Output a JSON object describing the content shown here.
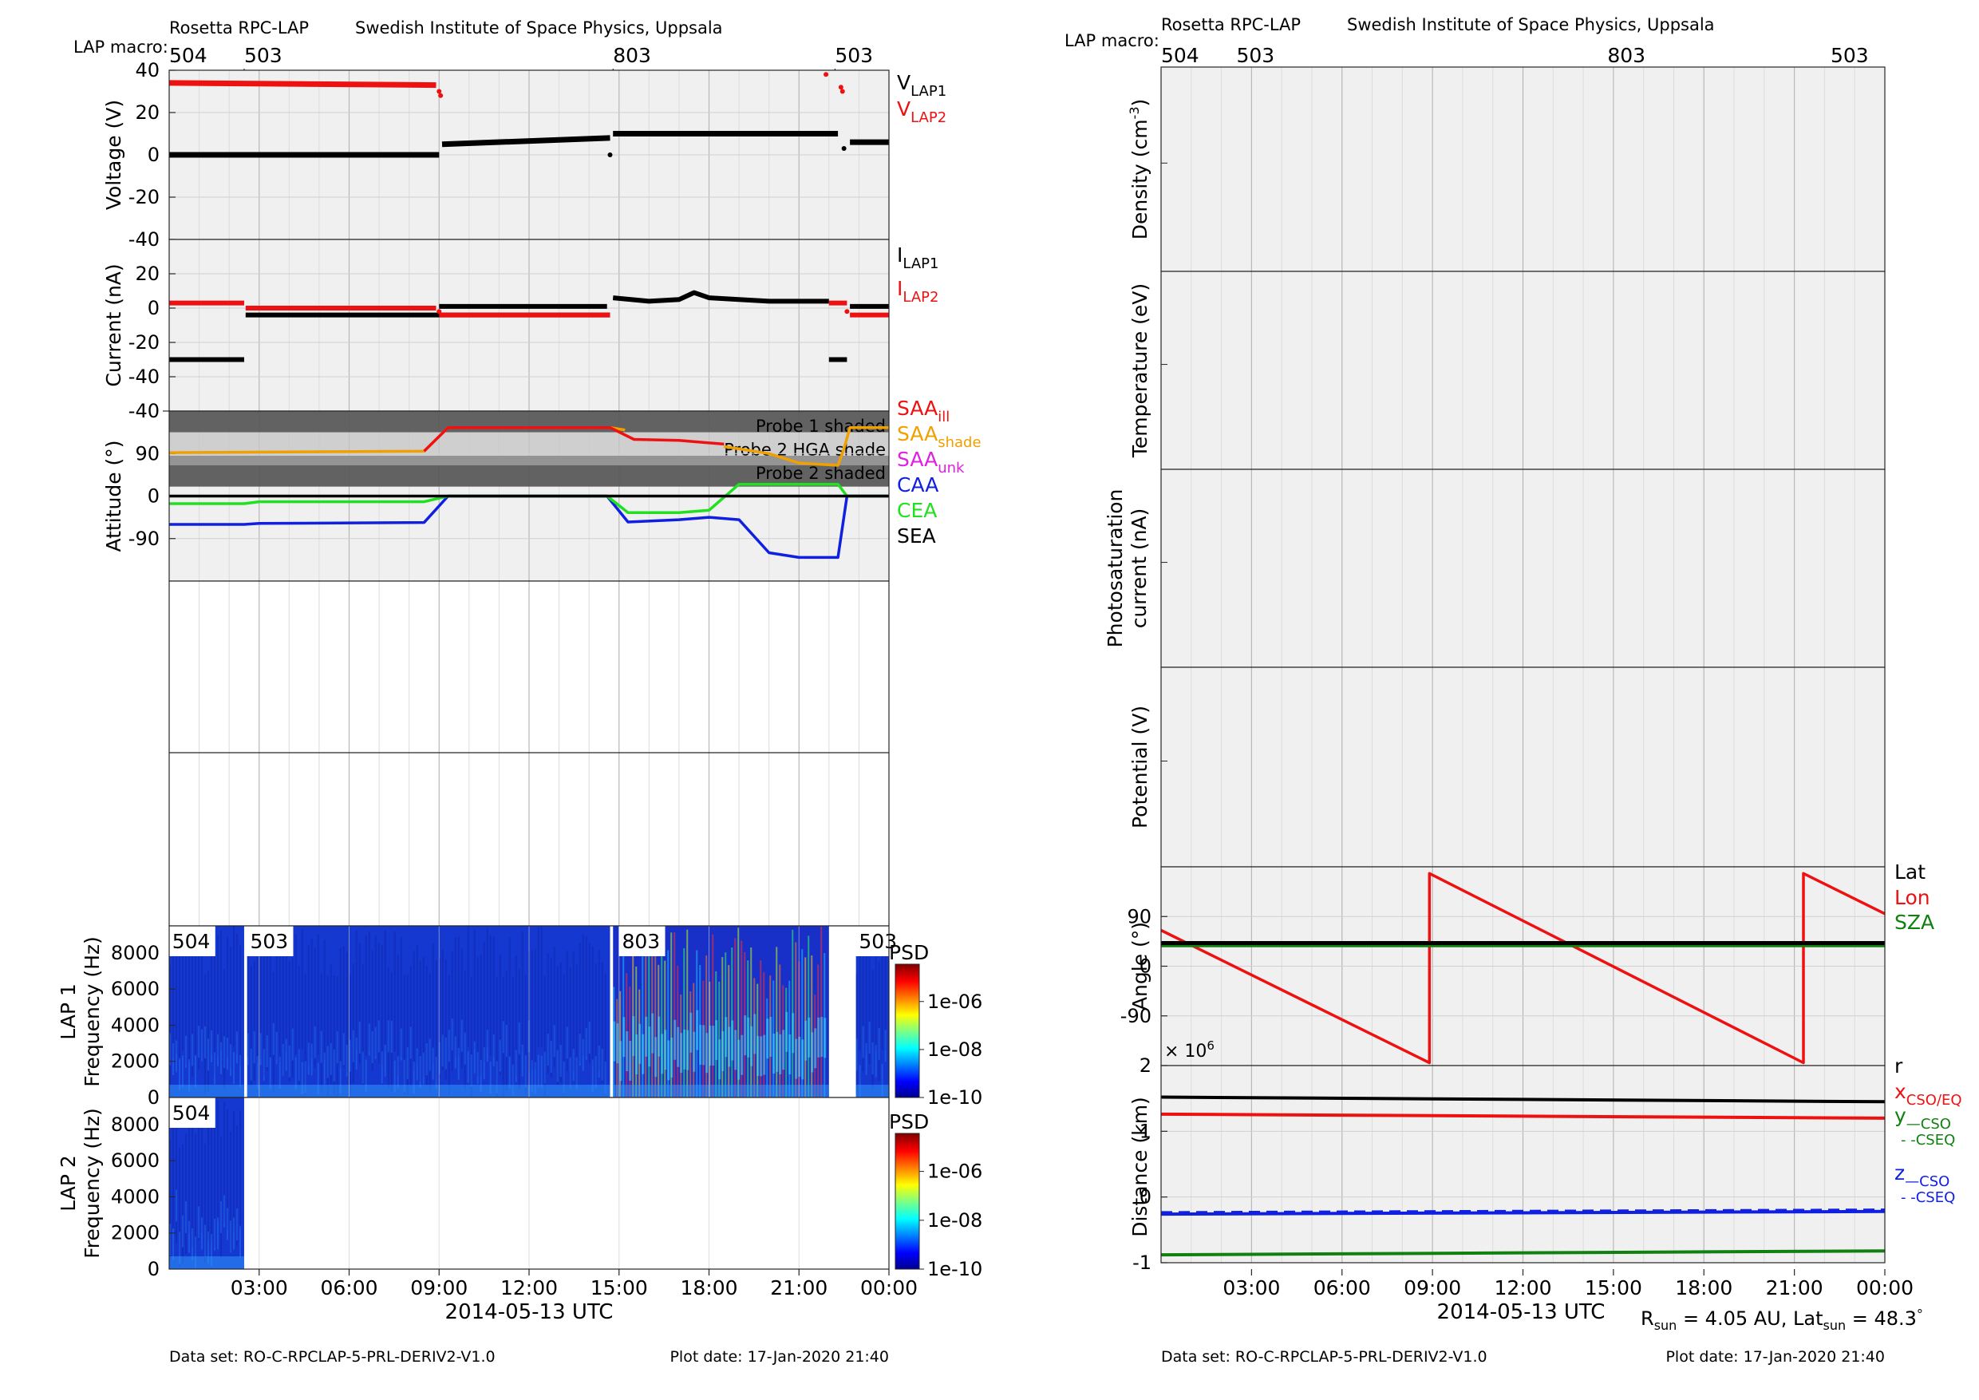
{
  "colors": {
    "panel_bg": "#f0f0f0",
    "grid": "#c8c8c8",
    "axis": "#262626",
    "black": "#000000",
    "red": "#ee1111",
    "orange": "#f0a000",
    "magenta": "#e020e0",
    "blue": "#1020e0",
    "green": "#20e020",
    "dark_green": "#108010",
    "shade_dark": "#5a5a5a",
    "shade_mid": "#9a9a9a",
    "shade_light": "#c4c4c4"
  },
  "left": {
    "header": {
      "instrument": "Rosetta RPC-LAP",
      "institute": "Swedish Institute of Space Physics, Uppsala",
      "macro_label": "LAP macro:",
      "macros": [
        {
          "label": "504",
          "t": 0.0
        },
        {
          "label": "503",
          "t": 2.5
        },
        {
          "label": "803",
          "t": 14.8
        },
        {
          "label": "503",
          "t": 22.2
        }
      ]
    },
    "x_ticks": [
      "03:00",
      "06:00",
      "09:00",
      "12:00",
      "15:00",
      "18:00",
      "21:00",
      "00:00"
    ],
    "x_label": "2014-05-13 UTC",
    "footer_dataset": "Data set: RO-C-RPCLAP-5-PRL-DERIV2-V1.0",
    "footer_plotdate": "Plot date: 17-Jan-2020 21:40"
  },
  "right": {
    "header": {
      "instrument": "Rosetta RPC-LAP",
      "institute": "Swedish Institute of Space Physics, Uppsala",
      "macro_label": "LAP macro:",
      "macros": [
        {
          "label": "504",
          "t": 0.0
        },
        {
          "label": "503",
          "t": 2.5
        },
        {
          "label": "803",
          "t": 14.8
        },
        {
          "label": "503",
          "t": 22.2
        }
      ]
    },
    "x_ticks": [
      "03:00",
      "06:00",
      "09:00",
      "12:00",
      "15:00",
      "18:00",
      "21:00",
      "00:00"
    ],
    "x_label": "2014-05-13 UTC",
    "sun_info": {
      "r_sun_label": "R",
      "r_sun_sub": "sun",
      "r_sun_value": " = 4.05 AU, Lat",
      "lat_sub": "sun",
      "lat_value": " = 48.3",
      "deg": "°"
    },
    "footer_dataset": "Data set: RO-C-RPCLAP-5-PRL-DERIV2-V1.0",
    "footer_plotdate": "Plot date: 17-Jan-2020 21:40"
  },
  "chart_data": [
    {
      "type": "scatter",
      "panel": "voltage",
      "ylabel": "Voltage (V)",
      "ylim": [
        -40,
        40
      ],
      "yticks": [
        "40",
        "20",
        "0",
        "-20",
        "-40"
      ],
      "xlim_hours": [
        0,
        24
      ],
      "legend": [
        {
          "name": "V",
          "sub": "LAP1",
          "color": "black"
        },
        {
          "name": "V",
          "sub": "LAP2",
          "color": "red"
        }
      ],
      "series": [
        {
          "name": "VLAP1",
          "color": "black",
          "segments": [
            [
              [
                0,
                0
              ],
              [
                9.0,
                0
              ]
            ],
            [
              [
                9.1,
                5
              ],
              [
                14.7,
                8
              ]
            ],
            [
              [
                14.8,
                10
              ],
              [
                22.3,
                10
              ]
            ],
            [
              [
                22.7,
                6
              ],
              [
                24,
                6
              ]
            ]
          ],
          "points": [
            [
              14.7,
              0
            ],
            [
              22.5,
              3
            ]
          ]
        },
        {
          "name": "VLAP2",
          "color": "red",
          "segments": [
            [
              [
                0,
                34
              ],
              [
                8.9,
                33
              ]
            ]
          ],
          "points": [
            [
              9.0,
              30
            ],
            [
              9.05,
              28
            ],
            [
              21.9,
              38
            ],
            [
              22.4,
              32
            ],
            [
              22.45,
              30
            ]
          ]
        }
      ]
    },
    {
      "type": "scatter",
      "panel": "current",
      "ylabel": "Current (nA)",
      "ylim": [
        -40,
        40
      ],
      "yticks": [
        "20",
        "0",
        "-20",
        "-40"
      ],
      "xlim_hours": [
        0,
        24
      ],
      "legend": [
        {
          "name": "I",
          "sub": "LAP1",
          "color": "black"
        },
        {
          "name": "I",
          "sub": "LAP2",
          "color": "red"
        }
      ],
      "series": [
        {
          "name": "ILAP1",
          "color": "black",
          "segments": [
            [
              [
                0,
                -30
              ],
              [
                2.5,
                -30
              ]
            ],
            [
              [
                2.55,
                -4
              ],
              [
                14.7,
                -4
              ]
            ],
            [
              [
                9.0,
                1
              ],
              [
                14.6,
                1
              ]
            ],
            [
              [
                14.8,
                6
              ],
              [
                16,
                4
              ],
              [
                17,
                5
              ],
              [
                17.5,
                9
              ],
              [
                18,
                6
              ],
              [
                19,
                5
              ],
              [
                20,
                4
              ],
              [
                22,
                4
              ]
            ],
            [
              [
                22.0,
                -30
              ],
              [
                22.6,
                -30
              ]
            ],
            [
              [
                22.7,
                1
              ],
              [
                24,
                1
              ]
            ]
          ],
          "points": []
        },
        {
          "name": "ILAP2",
          "color": "red",
          "segments": [
            [
              [
                0,
                3
              ],
              [
                2.5,
                3
              ]
            ],
            [
              [
                2.55,
                0
              ],
              [
                8.9,
                0
              ]
            ],
            [
              [
                9.0,
                -4
              ],
              [
                14.7,
                -4
              ]
            ],
            [
              [
                22.0,
                3
              ],
              [
                22.6,
                3
              ]
            ],
            [
              [
                22.7,
                -4
              ],
              [
                24,
                -4
              ]
            ]
          ],
          "points": [
            [
              9.0,
              -2
            ],
            [
              22.6,
              -2
            ]
          ]
        }
      ]
    },
    {
      "type": "line",
      "panel": "attitude",
      "ylabel": "Attitude (°)",
      "ylim": [
        -180,
        180
      ],
      "yticks": [
        "90",
        "0",
        "-90"
      ],
      "xlim_hours": [
        0,
        24
      ],
      "bands": [
        {
          "label": "Probe 1 shaded",
          "y0": 135,
          "y1": 180,
          "tone": "dark"
        },
        {
          "label": "Probe 2 HGA shade",
          "y0": 65,
          "y1": 135,
          "tone": "light"
        },
        {
          "label": "Probe 2 shaded",
          "y0": 20,
          "y1": 85,
          "tone": "dark"
        }
      ],
      "legend": [
        {
          "name": "SAA",
          "sub": "ill",
          "color": "red"
        },
        {
          "name": "SAA",
          "sub": "shade",
          "color": "orange"
        },
        {
          "name": "SAA",
          "sub": "unk",
          "color": "magenta"
        },
        {
          "name": "CAA",
          "sub": "",
          "color": "blue"
        },
        {
          "name": "CEA",
          "sub": "",
          "color": "green"
        },
        {
          "name": "SEA",
          "sub": "",
          "color": "black"
        }
      ],
      "series": [
        {
          "name": "SAA shade",
          "color": "orange",
          "points": [
            [
              0,
              92
            ],
            [
              8.5,
              95
            ],
            [
              9.3,
              145
            ],
            [
              14.7,
              145
            ],
            [
              15.2,
              140
            ]
          ]
        },
        {
          "name": "SAA ill",
          "color": "red",
          "points": [
            [
              8.5,
              95
            ],
            [
              9.3,
              145
            ],
            [
              14.7,
              145
            ],
            [
              15.5,
              120
            ],
            [
              17,
              118
            ],
            [
              18.5,
              110
            ]
          ]
        },
        {
          "name": "SAA shade",
          "color": "orange",
          "points": [
            [
              18.5,
              105
            ],
            [
              20,
              90
            ],
            [
              21,
              70
            ],
            [
              22.3,
              65
            ],
            [
              22.5,
              100
            ],
            [
              22.7,
              145
            ],
            [
              24,
              145
            ]
          ]
        },
        {
          "name": "CAA",
          "color": "blue",
          "points": [
            [
              0,
              -60
            ],
            [
              2.5,
              -60
            ],
            [
              3,
              -58
            ],
            [
              8.5,
              -56
            ],
            [
              9.3,
              0
            ],
            [
              14.6,
              0
            ],
            [
              15.3,
              -55
            ],
            [
              17,
              -50
            ],
            [
              18,
              -45
            ],
            [
              19,
              -50
            ],
            [
              20,
              -120
            ],
            [
              21,
              -130
            ],
            [
              22.3,
              -130
            ],
            [
              22.6,
              0
            ],
            [
              24,
              0
            ]
          ]
        },
        {
          "name": "CEA",
          "color": "green",
          "points": [
            [
              0,
              -16
            ],
            [
              2.5,
              -16
            ],
            [
              3,
              -12
            ],
            [
              8.5,
              -12
            ],
            [
              9.3,
              0
            ],
            [
              14.6,
              0
            ],
            [
              15.3,
              -35
            ],
            [
              17,
              -35
            ],
            [
              18,
              -30
            ],
            [
              19,
              25
            ],
            [
              22.3,
              25
            ],
            [
              22.6,
              0
            ],
            [
              24,
              0
            ]
          ]
        },
        {
          "name": "SEA",
          "color": "black",
          "points": [
            [
              0,
              0
            ],
            [
              24,
              0
            ]
          ]
        }
      ]
    },
    {
      "type": "heatmap",
      "panel": "lap1_spectrogram",
      "ylabel_line1": "LAP 1",
      "ylabel_line2": "Frequency (Hz)",
      "ylim": [
        0,
        9500
      ],
      "yticks": [
        "8000",
        "6000",
        "4000",
        "2000",
        "0"
      ],
      "colorbar_label": "PSD",
      "colorbar_ticks": [
        "1e-06",
        "1e-08",
        "1e-10"
      ],
      "macro_labels": [
        {
          "label": "504",
          "t": 0.1
        },
        {
          "label": "503",
          "t": 2.7
        },
        {
          "label": "803",
          "t": 15.1
        },
        {
          "label": "503",
          "t": 23.0
        }
      ],
      "blocks": [
        {
          "t0": 0,
          "t1": 2.5,
          "kind": "blue"
        },
        {
          "t0": 2.6,
          "t1": 14.7,
          "kind": "blue"
        },
        {
          "t0": 14.8,
          "t1": 22.0,
          "kind": "hot"
        },
        {
          "t0": 22.9,
          "t1": 24,
          "kind": "blue"
        }
      ]
    },
    {
      "type": "heatmap",
      "panel": "lap2_spectrogram",
      "ylabel_line1": "LAP 2",
      "ylabel_line2": "Frequency (Hz)",
      "ylim": [
        0,
        9500
      ],
      "yticks": [
        "8000",
        "6000",
        "4000",
        "2000",
        "0"
      ],
      "colorbar_label": "PSD",
      "colorbar_ticks": [
        "1e-06",
        "1e-08",
        "1e-10"
      ],
      "macro_labels": [
        {
          "label": "504",
          "t": 0.1
        }
      ],
      "blocks": [
        {
          "t0": 0,
          "t1": 2.5,
          "kind": "blue"
        }
      ]
    },
    {
      "type": "line",
      "panel": "density",
      "ylabel": "Density (cm",
      "ylabel_sup": "-3",
      "ylabel_tail": ")",
      "series": []
    },
    {
      "type": "line",
      "panel": "temperature",
      "ylabel": "Temperature (eV)",
      "series": []
    },
    {
      "type": "line",
      "panel": "photosaturation",
      "ylabel_line1": "Photosaturation",
      "ylabel_line2": "current (nA)",
      "series": []
    },
    {
      "type": "line",
      "panel": "potential",
      "ylabel": "Potential (V)",
      "series": []
    },
    {
      "type": "line",
      "panel": "angle",
      "ylabel": "Angle (°)",
      "ylim": [
        -180,
        180
      ],
      "yticks": [
        "90",
        "0",
        "-90"
      ],
      "legend": [
        {
          "name": "Lat",
          "color": "black"
        },
        {
          "name": "Lon",
          "color": "red"
        },
        {
          "name": "SZA",
          "color": "dark_green"
        }
      ],
      "series": [
        {
          "name": "Lon",
          "color": "red",
          "points": [
            [
              0,
              65
            ],
            [
              8.9,
              -175
            ],
            [
              8.9,
              168
            ],
            [
              21.3,
              -175
            ],
            [
              21.3,
              168
            ],
            [
              24,
              95
            ]
          ]
        },
        {
          "name": "SZA",
          "color": "dark_green",
          "points": [
            [
              0,
              38
            ],
            [
              24,
              38
            ]
          ]
        },
        {
          "name": "Lat",
          "color": "black",
          "points": [
            [
              0,
              42
            ],
            [
              24,
              42
            ]
          ]
        }
      ]
    },
    {
      "type": "line",
      "panel": "distance",
      "ylabel": "Distance (km)",
      "ylim": [
        -1,
        2
      ],
      "yticks": [
        "2",
        "1",
        "0",
        "-1"
      ],
      "exponent_label": "× 10",
      "exponent_sup": "6",
      "legend": [
        {
          "name": "r",
          "sub": "",
          "color": "black"
        },
        {
          "name": "x",
          "sub": "CSO/EQ",
          "color": "red"
        },
        {
          "name": "y",
          "sub": "—CSO",
          "sub2": "- -CSEQ",
          "color": "dark_green"
        },
        {
          "name": "z",
          "sub": "—CSO",
          "sub2": "- -CSEQ",
          "color": "blue"
        }
      ],
      "series": [
        {
          "name": "r",
          "color": "black",
          "points": [
            [
              0,
              1.52
            ],
            [
              24,
              1.45
            ]
          ]
        },
        {
          "name": "x CSO/EQ",
          "color": "red",
          "points": [
            [
              0,
              1.26
            ],
            [
              24,
              1.2
            ]
          ]
        },
        {
          "name": "z CSO",
          "color": "blue",
          "points": [
            [
              0,
              -0.26
            ],
            [
              24,
              -0.22
            ]
          ]
        },
        {
          "name": "z CSEQ",
          "color": "blue",
          "dashed": true,
          "points": [
            [
              0,
              -0.24
            ],
            [
              24,
              -0.2
            ]
          ]
        },
        {
          "name": "y CSO",
          "color": "dark_green",
          "points": [
            [
              0,
              -0.88
            ],
            [
              24,
              -0.82
            ]
          ]
        }
      ]
    }
  ]
}
